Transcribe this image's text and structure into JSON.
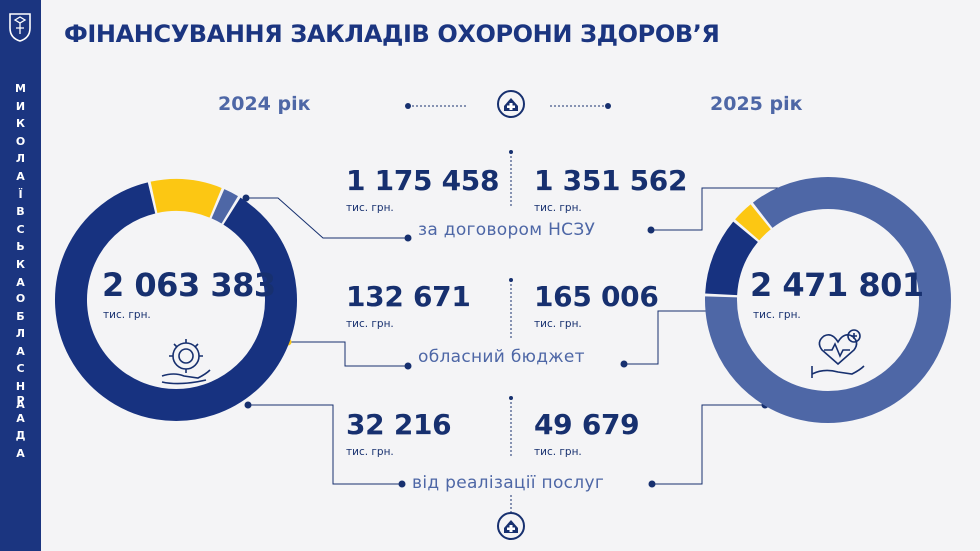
{
  "title": "ФІНАНСУВАННЯ ЗАКЛАДІВ ОХОРОНИ ЗДОРОВ’Я",
  "sidebar": {
    "lines": [
      "МИКОЛАЇВСЬКА",
      "ОБЛАСНА",
      "РАДА"
    ]
  },
  "unit_label": "тис. грн.",
  "colors": {
    "navy": "#173280",
    "yellow": "#fcc713",
    "blue": "#4e67a6",
    "text": "#17306f",
    "sidebar": "#1b3580"
  },
  "icons": [
    "hospital-icon",
    "gear-hand-icon",
    "heart-hand-icon"
  ],
  "chart_data": {
    "type": "donut",
    "title": "ФІНАНСУВАННЯ ЗАКЛАДІВ ОХОРОНИ ЗДОРОВ’Я",
    "unit": "тис. грн.",
    "categories": [
      "за договором НСЗУ",
      "обласний бюджет",
      "від реалізації послуг"
    ],
    "series": [
      {
        "name": "2024 рік",
        "total": "2 063 383",
        "values": [
          1175458,
          132671,
          32216
        ],
        "labels": [
          "1 175 458",
          "132 671",
          "32 216"
        ]
      },
      {
        "name": "2025 рік",
        "total": "2 471 801",
        "values": [
          1351562,
          165006,
          49679
        ],
        "labels": [
          "1 351 562",
          "165 006",
          "49 679"
        ]
      }
    ]
  }
}
